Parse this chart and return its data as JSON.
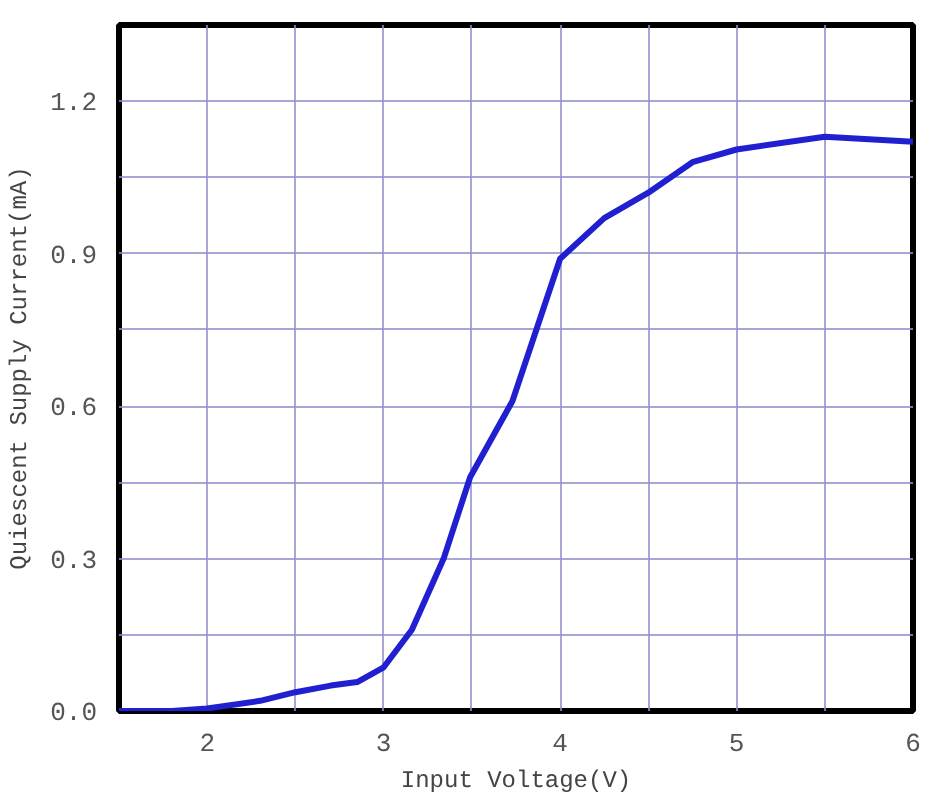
{
  "chart_data": {
    "type": "line",
    "xlabel": "Input Voltage(V)",
    "ylabel": "Quiescent Supply Current(mA)",
    "x": [
      1.5,
      1.8,
      2.0,
      2.3,
      2.5,
      2.7,
      2.85,
      3.0,
      3.16,
      3.34,
      3.49,
      3.73,
      4.0,
      4.25,
      4.5,
      4.75,
      5.0,
      5.5,
      6.0
    ],
    "series": [
      {
        "color": "#2020d0",
        "values": [
          0.0,
          0.0,
          0.005,
          0.02,
          0.037,
          0.05,
          0.057,
          0.086,
          0.16,
          0.3,
          0.46,
          0.61,
          0.89,
          0.97,
          1.02,
          1.08,
          1.105,
          1.13,
          1.12
        ]
      }
    ],
    "xlim": [
      1.5,
      6
    ],
    "ylim": [
      0,
      1.35
    ],
    "xticks": [
      {
        "value": 1.5,
        "label": null
      },
      2,
      {
        "value": 2.5,
        "label": null
      },
      3,
      {
        "value": 3.5,
        "label": null
      },
      4,
      {
        "value": 4.5,
        "label": null
      },
      5,
      {
        "value": 5.5,
        "label": null
      },
      6
    ],
    "yticks": [
      {
        "value": 0,
        "label": "0.0"
      },
      {
        "value": 0.15,
        "label": null
      },
      0.3,
      {
        "value": 0.45,
        "label": null
      },
      0.6,
      {
        "value": 0.75,
        "label": null
      },
      0.9,
      {
        "value": 1.05,
        "label": null
      },
      1.2
    ],
    "grid": true,
    "marker": "none",
    "line_style": "solid"
  }
}
